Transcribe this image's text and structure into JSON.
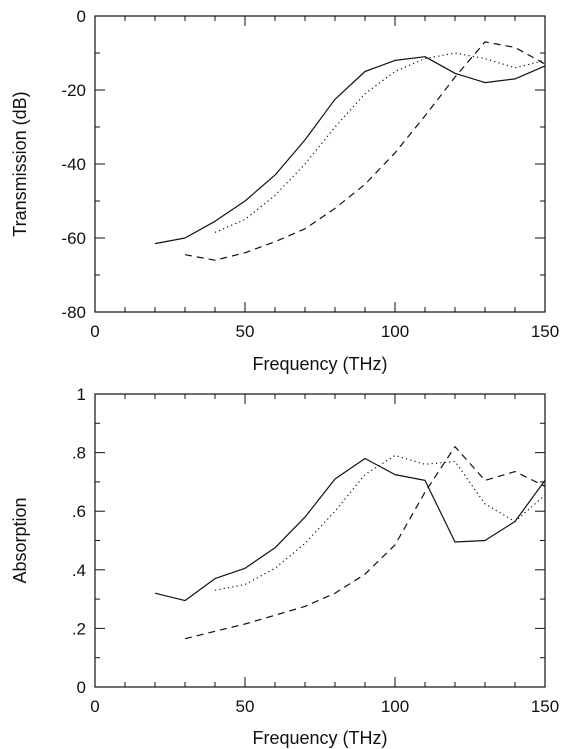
{
  "chart_data": [
    {
      "type": "line",
      "xlabel": "Frequency (THz)",
      "ylabel": "Transmission (dB)",
      "xlim": [
        0,
        150
      ],
      "ylim": [
        -80,
        0
      ],
      "xticks": [
        0,
        50,
        100,
        150
      ],
      "xtick_labels": [
        "0",
        "50",
        "100",
        "150"
      ],
      "yticks": [
        -80,
        -60,
        -40,
        -20,
        0
      ],
      "ytick_labels": [
        "-80",
        "-60",
        "-40",
        "-20",
        "0"
      ],
      "grid": false,
      "series": [
        {
          "style": "solid",
          "x": [
            20,
            30,
            40,
            50,
            60,
            70,
            80,
            90,
            100,
            110,
            120,
            130,
            140,
            150
          ],
          "y": [
            -61.5,
            -60,
            -55.5,
            -50,
            -43,
            -33.5,
            -22.5,
            -15,
            -12,
            -11,
            -15.5,
            -18,
            -17,
            -13.5
          ]
        },
        {
          "style": "dotted",
          "x": [
            40,
            50,
            60,
            70,
            80,
            90,
            100,
            110,
            120,
            130,
            140,
            150
          ],
          "y": [
            -58.5,
            -55,
            -48.5,
            -40,
            -30,
            -21,
            -15,
            -11.5,
            -10,
            -11.5,
            -14,
            -12
          ]
        },
        {
          "style": "dashed",
          "x": [
            30,
            40,
            50,
            60,
            70,
            80,
            90,
            100,
            110,
            120,
            130,
            140,
            150
          ],
          "y": [
            -64.5,
            -66,
            -64,
            -61,
            -57.5,
            -52,
            -45.5,
            -37,
            -27,
            -16.5,
            -7,
            -8.5,
            -13
          ]
        }
      ]
    },
    {
      "type": "line",
      "xlabel": "Frequency (THz)",
      "ylabel": "Absorption",
      "xlim": [
        0,
        150
      ],
      "ylim": [
        0,
        1
      ],
      "xticks": [
        0,
        50,
        100,
        150
      ],
      "xtick_labels": [
        "0",
        "50",
        "100",
        "150"
      ],
      "yticks": [
        0,
        0.2,
        0.4,
        0.6,
        0.8,
        1
      ],
      "ytick_labels": [
        "0",
        ".2",
        ".4",
        ".6",
        ".8",
        "1"
      ],
      "grid": false,
      "series": [
        {
          "style": "solid",
          "x": [
            20,
            30,
            40,
            50,
            60,
            70,
            80,
            90,
            100,
            110,
            120,
            130,
            140,
            150
          ],
          "y": [
            0.32,
            0.295,
            0.37,
            0.405,
            0.475,
            0.58,
            0.71,
            0.78,
            0.725,
            0.705,
            0.495,
            0.5,
            0.565,
            0.705
          ]
        },
        {
          "style": "dotted",
          "x": [
            40,
            50,
            60,
            70,
            80,
            90,
            100,
            110,
            120,
            130,
            140,
            150
          ],
          "y": [
            0.33,
            0.35,
            0.405,
            0.49,
            0.6,
            0.725,
            0.79,
            0.76,
            0.77,
            0.625,
            0.565,
            0.655
          ]
        },
        {
          "style": "dashed",
          "x": [
            30,
            40,
            50,
            60,
            70,
            80,
            90,
            100,
            110,
            120,
            130,
            140,
            150
          ],
          "y": [
            0.165,
            0.19,
            0.215,
            0.245,
            0.275,
            0.32,
            0.385,
            0.485,
            0.665,
            0.82,
            0.705,
            0.735,
            0.685
          ]
        }
      ]
    }
  ]
}
